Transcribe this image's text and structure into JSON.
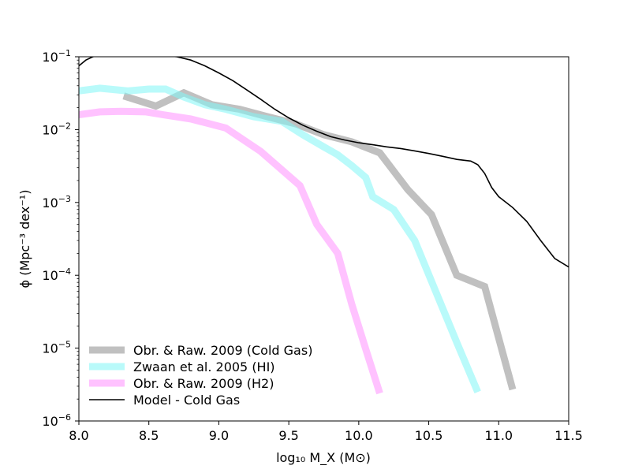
{
  "chart_data": {
    "type": "line",
    "xlabel": "log₁₀ M_X (M⊙)",
    "ylabel": "ϕ (Mpc⁻³ dex⁻¹)",
    "xlim": [
      8.0,
      11.5
    ],
    "ylim": [
      1e-06,
      0.1
    ],
    "xscale": "linear",
    "yscale": "log",
    "grid": false,
    "legend_position": "lower-left",
    "x_ticks": [
      8.0,
      8.5,
      9.0,
      9.5,
      10.0,
      10.5,
      11.0,
      11.5
    ],
    "x_tick_labels": [
      "8.0",
      "8.5",
      "9.0",
      "9.5",
      "10.0",
      "10.5",
      "11.0",
      "11.5"
    ],
    "y_tick_labels": [
      {
        "value": 1e-06,
        "base": "10",
        "exp": "−6"
      },
      {
        "value": 1e-05,
        "base": "10",
        "exp": "−5"
      },
      {
        "value": 0.0001,
        "base": "10",
        "exp": "−4"
      },
      {
        "value": 0.001,
        "base": "10",
        "exp": "−3"
      },
      {
        "value": 0.01,
        "base": "10",
        "exp": "−2"
      },
      {
        "value": 0.1,
        "base": "10",
        "exp": "−1"
      }
    ],
    "series": [
      {
        "name": "Obr. & Raw. 2009 (Cold Gas)",
        "color": "#c0c0c0",
        "line_width": 9,
        "opacity": 1.0,
        "x": [
          8.32,
          8.55,
          8.75,
          8.95,
          9.15,
          9.35,
          9.55,
          9.75,
          9.95,
          10.15,
          10.35,
          10.52,
          10.7,
          10.9,
          11.1
        ],
        "y": [
          0.029,
          0.021,
          0.032,
          0.022,
          0.019,
          0.015,
          0.012,
          0.0085,
          0.0068,
          0.0048,
          0.0015,
          0.00068,
          0.0001,
          7e-05,
          2.7e-06
        ]
      },
      {
        "name": "Zwaan et al. 2005 (HI)",
        "color": "#7ff5f5",
        "line_width": 9,
        "opacity": 0.55,
        "x": [
          8.0,
          8.15,
          8.35,
          8.5,
          8.62,
          8.75,
          8.9,
          9.05,
          9.25,
          9.45,
          9.6,
          9.75,
          9.85,
          9.95,
          10.05,
          10.1,
          10.25,
          10.4,
          10.55,
          10.7,
          10.85
        ],
        "y": [
          0.034,
          0.037,
          0.034,
          0.036,
          0.036,
          0.028,
          0.022,
          0.019,
          0.015,
          0.013,
          0.0085,
          0.0058,
          0.0045,
          0.0032,
          0.0022,
          0.0012,
          0.0008,
          0.0003,
          6e-05,
          1.2e-05,
          2.5e-06
        ]
      },
      {
        "name": "Obr. & Raw. 2009 (H2)",
        "color": "#ff99ff",
        "line_width": 9,
        "opacity": 0.6,
        "x": [
          8.0,
          8.15,
          8.3,
          8.48,
          8.6,
          8.8,
          9.05,
          9.3,
          9.58,
          9.7,
          9.85,
          9.95,
          10.05,
          10.15
        ],
        "y": [
          0.016,
          0.0175,
          0.0178,
          0.0175,
          0.016,
          0.014,
          0.0105,
          0.005,
          0.0017,
          0.0005,
          0.0002,
          4e-05,
          9.7e-06,
          2.4e-06
        ]
      },
      {
        "name": "Model - Cold Gas",
        "color": "#000000",
        "line_width": 1.6,
        "opacity": 1.0,
        "x": [
          8.0,
          8.05,
          8.1,
          8.2,
          8.3,
          8.5,
          8.7,
          8.8,
          8.9,
          9.0,
          9.1,
          9.2,
          9.3,
          9.4,
          9.5,
          9.6,
          9.7,
          9.8,
          9.9,
          10.0,
          10.1,
          10.2,
          10.3,
          10.4,
          10.5,
          10.6,
          10.7,
          10.8,
          10.85,
          10.9,
          10.95,
          11.0,
          11.1,
          11.2,
          11.3,
          11.4,
          11.5
        ],
        "y": [
          0.075,
          0.09,
          0.1,
          0.108,
          0.11,
          0.109,
          0.1,
          0.09,
          0.075,
          0.06,
          0.047,
          0.035,
          0.026,
          0.019,
          0.0145,
          0.0115,
          0.0095,
          0.008,
          0.0072,
          0.0066,
          0.0062,
          0.0058,
          0.0055,
          0.0051,
          0.0047,
          0.0043,
          0.0039,
          0.0037,
          0.0033,
          0.0025,
          0.0016,
          0.0012,
          0.00085,
          0.00055,
          0.0003,
          0.00017,
          0.00013
        ]
      }
    ]
  }
}
